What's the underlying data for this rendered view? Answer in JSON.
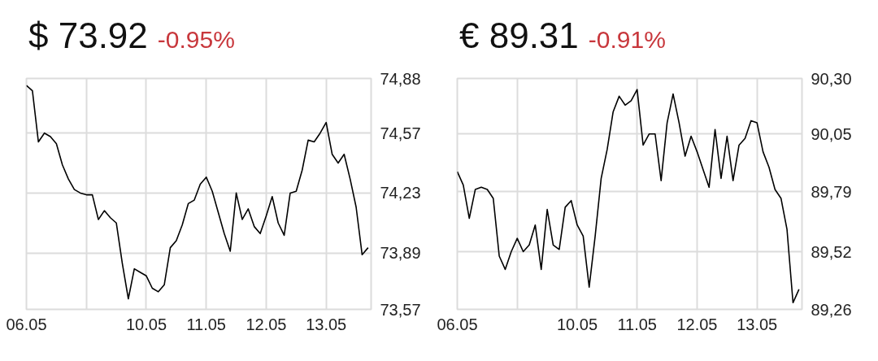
{
  "chart_data": [
    {
      "type": "line",
      "title": "$ 73.92",
      "subtitle": "-0.95%",
      "color": "#000000",
      "grid": true,
      "categories": [
        "06.05",
        null,
        null,
        null,
        null,
        null,
        null,
        null,
        null,
        null,
        null,
        null,
        null,
        null,
        null,
        null,
        null,
        null,
        null,
        null,
        "10.05",
        null,
        null,
        null,
        null,
        null,
        null,
        null,
        null,
        null,
        "11.05",
        null,
        null,
        null,
        null,
        null,
        null,
        null,
        null,
        null,
        "12.05",
        null,
        null,
        null,
        null,
        null,
        null,
        null,
        null,
        null,
        "13.05",
        null,
        null,
        null,
        null,
        null,
        null,
        null
      ],
      "values": [
        74.84,
        74.81,
        74.52,
        74.57,
        74.55,
        74.51,
        74.39,
        74.31,
        74.25,
        74.23,
        74.22,
        74.22,
        74.08,
        74.13,
        74.09,
        74.06,
        73.83,
        73.63,
        73.8,
        73.78,
        73.76,
        73.69,
        73.67,
        73.71,
        73.92,
        73.96,
        74.05,
        74.17,
        74.19,
        74.28,
        74.32,
        74.24,
        74.12,
        74.0,
        73.9,
        74.23,
        74.08,
        74.14,
        74.04,
        74.0,
        74.1,
        74.21,
        74.06,
        73.99,
        74.23,
        74.24,
        74.36,
        74.53,
        74.52,
        74.57,
        74.63,
        74.45,
        74.4,
        74.45,
        74.31,
        74.15,
        73.88,
        73.92
      ],
      "ylim": [
        73.57,
        74.88
      ],
      "yticks": [
        {
          "value": 73.57,
          "label": "73,57"
        },
        {
          "value": 73.89,
          "label": "73,89"
        },
        {
          "value": 74.23,
          "label": "74,23"
        },
        {
          "value": 74.57,
          "label": "74,57"
        },
        {
          "value": 74.88,
          "label": "74,88"
        }
      ]
    },
    {
      "type": "line",
      "title": "€ 89.31",
      "subtitle": "-0.91%",
      "color": "#000000",
      "grid": true,
      "categories": [
        "06.05",
        null,
        null,
        null,
        null,
        null,
        null,
        null,
        null,
        null,
        null,
        null,
        null,
        null,
        null,
        null,
        null,
        null,
        null,
        null,
        "10.05",
        null,
        null,
        null,
        null,
        null,
        null,
        null,
        null,
        null,
        "11.05",
        null,
        null,
        null,
        null,
        null,
        null,
        null,
        null,
        null,
        "12.05",
        null,
        null,
        null,
        null,
        null,
        null,
        null,
        null,
        null,
        "13.05",
        null,
        null,
        null,
        null,
        null,
        null,
        null
      ],
      "values": [
        89.88,
        89.82,
        89.67,
        89.8,
        89.81,
        89.8,
        89.76,
        89.5,
        89.44,
        89.52,
        89.58,
        89.52,
        89.55,
        89.64,
        89.44,
        89.71,
        89.55,
        89.53,
        89.72,
        89.75,
        89.64,
        89.59,
        89.36,
        89.59,
        89.85,
        89.98,
        90.15,
        90.22,
        90.18,
        90.2,
        90.25,
        90.0,
        90.05,
        90.05,
        89.84,
        90.1,
        90.23,
        90.1,
        89.95,
        90.04,
        89.97,
        89.89,
        89.81,
        90.07,
        89.85,
        90.04,
        89.84,
        90.0,
        90.03,
        90.11,
        90.1,
        89.97,
        89.9,
        89.8,
        89.76,
        89.62,
        89.29,
        89.35
      ],
      "ylim": [
        89.26,
        90.3
      ],
      "yticks": [
        {
          "value": 89.26,
          "label": "89,26"
        },
        {
          "value": 89.52,
          "label": "89,52"
        },
        {
          "value": 89.79,
          "label": "89,79"
        },
        {
          "value": 90.05,
          "label": "90,05"
        },
        {
          "value": 90.3,
          "label": "90,30"
        }
      ]
    }
  ]
}
